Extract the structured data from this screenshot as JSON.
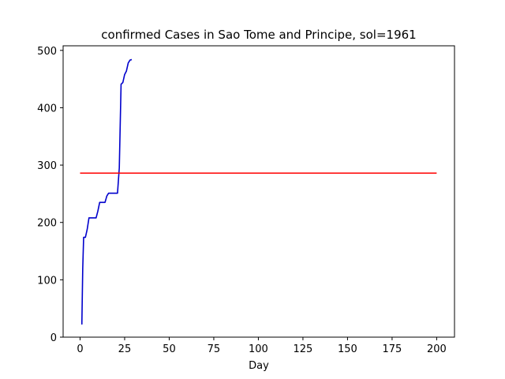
{
  "chart_data": {
    "type": "line",
    "title": "confirmed Cases in Sao Tome and Principe, sol=1961",
    "xlabel": "Day",
    "ylabel": "",
    "xlim": [
      -9.5,
      210
    ],
    "ylim": [
      0,
      508
    ],
    "x_ticks": [
      0,
      25,
      50,
      75,
      100,
      125,
      150,
      175,
      200
    ],
    "y_ticks": [
      0,
      100,
      200,
      300,
      400,
      500
    ],
    "grid": false,
    "series": [
      {
        "color": "#0000cc",
        "x": [
          1,
          1.5,
          2,
          3,
          4,
          5,
          6,
          7,
          8,
          9,
          10,
          11,
          12,
          13,
          14,
          15,
          16,
          17,
          18,
          19,
          20,
          21,
          22,
          23,
          24,
          25,
          26,
          27,
          28,
          29
        ],
        "y": [
          22,
          120,
          174,
          174,
          188,
          208,
          208,
          208,
          208,
          208,
          220,
          235,
          235,
          235,
          235,
          246,
          251,
          251,
          251,
          251,
          251,
          251,
          295,
          441,
          444,
          458,
          464,
          478,
          483,
          484
        ]
      },
      {
        "color": "#ff0000",
        "x": [
          0,
          200
        ],
        "y": [
          286,
          286
        ]
      }
    ]
  }
}
